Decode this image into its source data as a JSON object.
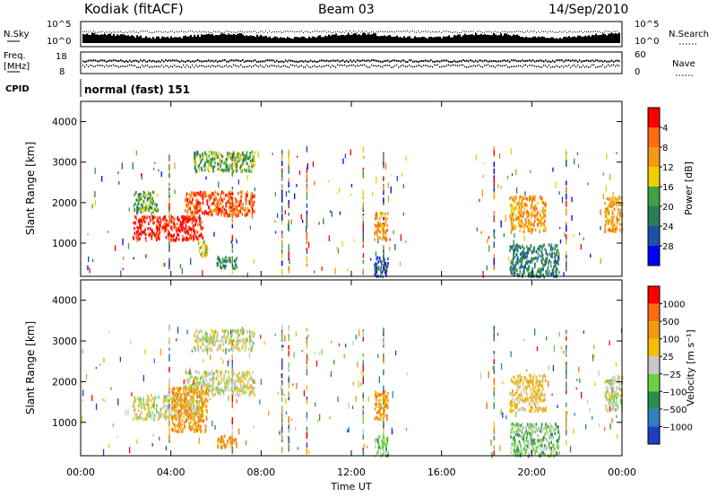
{
  "header": {
    "station": "Kodiak (fitACF)",
    "beam": "Beam 03",
    "date": "14/Sep/2010"
  },
  "status_panels": {
    "nsky_label": "N.Sky",
    "nsky_ticks": [
      "10^5",
      "10^0"
    ],
    "nsearch_label": "N.Search",
    "nsearch_ticks": [
      "10^5",
      "10^0"
    ],
    "freq_label_1": "Freq.",
    "freq_label_2": "[MHz]",
    "freq_ticks": [
      "18",
      "8"
    ],
    "nave_label": "Nave",
    "nave_ticks": [
      "60",
      "0"
    ],
    "cpid_label": "CPID",
    "cpid_text": "normal (fast) 151"
  },
  "chart_data": [
    {
      "type": "heatmap",
      "title": "",
      "xlabel": "Time UT",
      "ylabel": "Slant Range [km]",
      "x_range_hours": [
        0,
        24
      ],
      "xticks": [
        "00:00",
        "04:00",
        "08:00",
        "12:00",
        "16:00",
        "20:00",
        "00:00"
      ],
      "y_range_km": [
        180,
        4500
      ],
      "yticks": [
        1000,
        2000,
        3000,
        4000
      ],
      "colorbar": {
        "label": "Power [dB]",
        "ticks": [
          "4",
          "8",
          "12",
          "16",
          "20",
          "24",
          "28"
        ],
        "colors": [
          "#0000ff",
          "#1f4fa8",
          "#2a7d55",
          "#3fa13f",
          "#f0d000",
          "#f29a10",
          "#ff6a10",
          "#ff0000"
        ]
      },
      "echo_regions": [
        {
          "t_start": 2.3,
          "t_end": 5.4,
          "r_start": 1100,
          "r_end": 1700,
          "level": 7
        },
        {
          "t_start": 4.6,
          "t_end": 7.7,
          "r_start": 1700,
          "r_end": 2300,
          "level": 6
        },
        {
          "t_start": 2.3,
          "t_end": 3.4,
          "r_start": 1800,
          "r_end": 2300,
          "level": 3
        },
        {
          "t_start": 5.0,
          "t_end": 7.7,
          "r_start": 2800,
          "r_end": 3300,
          "level": 3
        },
        {
          "t_start": 5.2,
          "t_end": 5.6,
          "r_start": 700,
          "r_end": 1100,
          "level": 4
        },
        {
          "t_start": 6.0,
          "t_end": 6.9,
          "r_start": 400,
          "r_end": 700,
          "level": 2
        },
        {
          "t_start": 13.0,
          "t_end": 13.6,
          "r_start": 1100,
          "r_end": 1800,
          "level": 5
        },
        {
          "t_start": 13.0,
          "t_end": 13.6,
          "r_start": 200,
          "r_end": 700,
          "level": 1
        },
        {
          "t_start": 19.0,
          "t_end": 20.6,
          "r_start": 1300,
          "r_end": 2200,
          "level": 5
        },
        {
          "t_start": 19.0,
          "t_end": 21.2,
          "r_start": 200,
          "r_end": 1000,
          "level": 2
        },
        {
          "t_start": 23.2,
          "t_end": 24.0,
          "r_start": 1300,
          "r_end": 2200,
          "level": 5
        }
      ]
    },
    {
      "type": "heatmap",
      "title": "",
      "xlabel": "Time UT",
      "ylabel": "Slant Range [km]",
      "x_range_hours": [
        0,
        24
      ],
      "xticks": [
        "00:00",
        "04:00",
        "08:00",
        "12:00",
        "16:00",
        "20:00",
        "00:00"
      ],
      "y_range_km": [
        180,
        4500
      ],
      "yticks": [
        1000,
        2000,
        3000,
        4000
      ],
      "colorbar": {
        "label": "Velocity [m s⁻¹]",
        "ticks": [
          "1000",
          "500",
          "100",
          "25",
          "−25",
          "−100",
          "−500",
          "−1000"
        ],
        "colors": [
          "#1f3fc0",
          "#2f7fc0",
          "#2a8d50",
          "#6fd13f",
          "#c8c8c8",
          "#f0c000",
          "#f29a10",
          "#ff6a10",
          "#ff0000"
        ]
      },
      "echo_regions": [
        {
          "t_start": 2.3,
          "t_end": 5.4,
          "r_start": 1100,
          "r_end": 1700,
          "level": 4
        },
        {
          "t_start": 4.6,
          "t_end": 7.7,
          "r_start": 1700,
          "r_end": 2300,
          "level": 4
        },
        {
          "t_start": 4.0,
          "t_end": 5.6,
          "r_start": 800,
          "r_end": 1900,
          "level": 6
        },
        {
          "t_start": 5.0,
          "t_end": 7.7,
          "r_start": 2800,
          "r_end": 3300,
          "level": 4
        },
        {
          "t_start": 6.0,
          "t_end": 6.9,
          "r_start": 400,
          "r_end": 700,
          "level": 6
        },
        {
          "t_start": 13.0,
          "t_end": 13.6,
          "r_start": 1100,
          "r_end": 1800,
          "level": 6
        },
        {
          "t_start": 13.0,
          "t_end": 13.6,
          "r_start": 200,
          "r_end": 700,
          "level": 3
        },
        {
          "t_start": 19.0,
          "t_end": 20.6,
          "r_start": 1300,
          "r_end": 2200,
          "level": 5
        },
        {
          "t_start": 19.0,
          "t_end": 21.2,
          "r_start": 200,
          "r_end": 1000,
          "level": 3
        },
        {
          "t_start": 23.2,
          "t_end": 24.0,
          "r_start": 1300,
          "r_end": 2200,
          "level": 4
        }
      ]
    }
  ]
}
